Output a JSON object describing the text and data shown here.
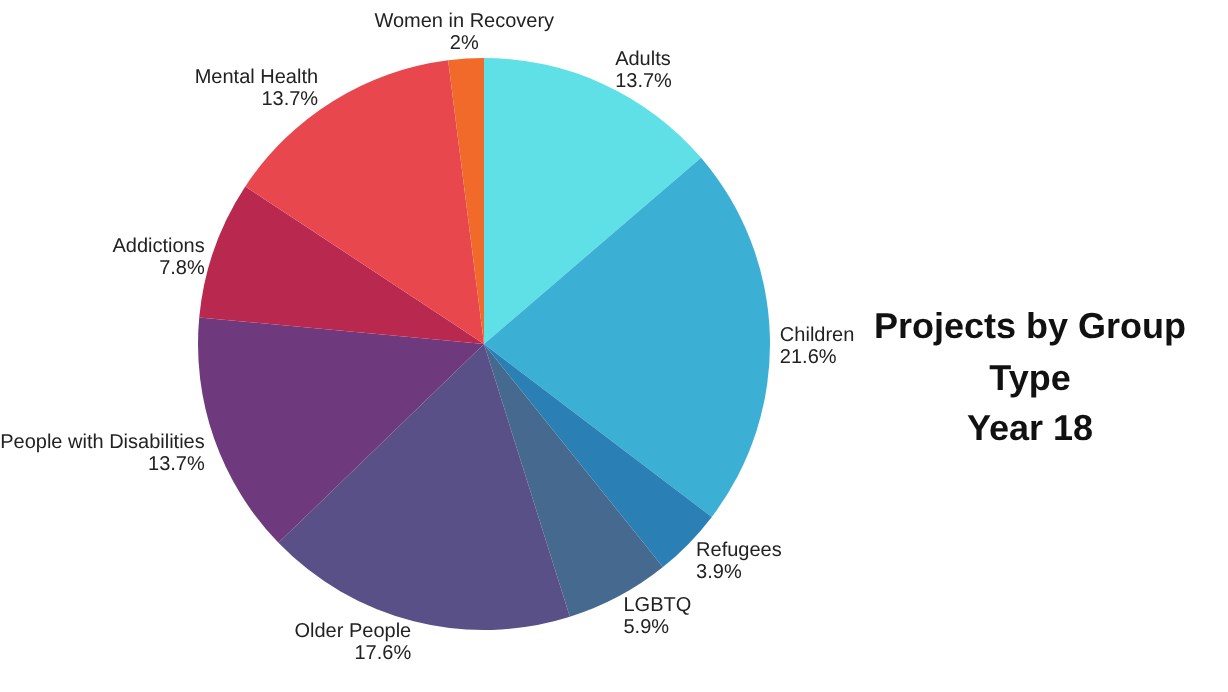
{
  "chart_data": {
    "type": "pie",
    "title": "Projects by Group Type",
    "subtitle": "Year 18",
    "categories": [
      "Adults",
      "Children",
      "Refugees",
      "LGBTQ",
      "Older People",
      "People with Disabilities",
      "Addictions",
      "Mental Health",
      "Women in Recovery"
    ],
    "values": [
      13.7,
      21.6,
      3.9,
      5.9,
      17.6,
      13.7,
      7.8,
      13.7,
      2
    ],
    "value_labels": [
      "13.7%",
      "21.6%",
      "3.9%",
      "5.9%",
      "17.6%",
      "13.7%",
      "7.8%",
      "13.7%",
      "2%"
    ],
    "colors": [
      "#5ee0e6",
      "#3cb0d4",
      "#2a7fb5",
      "#466a8f",
      "#5a5088",
      "#6f3a7d",
      "#b8284f",
      "#e8474e",
      "#f26a2a"
    ]
  }
}
